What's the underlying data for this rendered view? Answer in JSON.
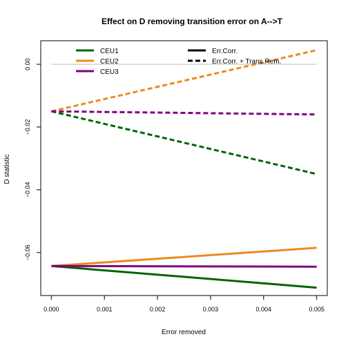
{
  "chart_data": {
    "type": "line",
    "title": "Effect on D removing transition error on A-->T",
    "xlabel": "Error removed",
    "ylabel": "D statistic",
    "xlim": [
      -0.0002,
      0.0052
    ],
    "ylim": [
      -0.0737,
      0.0075
    ],
    "x_ticks": [
      0.0,
      0.001,
      0.002,
      0.003,
      0.004,
      0.005
    ],
    "x_tick_labels": [
      "0.000",
      "0.001",
      "0.002",
      "0.003",
      "0.004",
      "0.005"
    ],
    "y_ticks": [
      0.0,
      -0.02,
      -0.04,
      -0.06
    ],
    "y_tick_labels": [
      "0.00",
      "−0.02",
      "−0.04",
      "−0.06"
    ],
    "reference_line": {
      "y": 0.0,
      "color": "#bdbdbd"
    },
    "colors": {
      "CEU1": "#006400",
      "CEU2": "#ee8a1c",
      "CEU3": "#800080"
    },
    "legend_position": "top",
    "legend_colors": [
      {
        "label": "CEU1",
        "color": "#006400"
      },
      {
        "label": "CEU2",
        "color": "#ee8a1c"
      },
      {
        "label": "CEU3",
        "color": "#800080"
      }
    ],
    "legend_styles": [
      {
        "label": "Err.Corr.",
        "dash": "solid"
      },
      {
        "label": "Err.Corr. + Trans.Rem.",
        "dash": "dashed"
      }
    ],
    "series": [
      {
        "name": "CEU1",
        "style": "Err.Corr.",
        "color": "#006400",
        "dash": "solid",
        "x": [
          0.0,
          0.005
        ],
        "y": [
          -0.0643,
          -0.0712
        ]
      },
      {
        "name": "CEU2",
        "style": "Err.Corr.",
        "color": "#ee8a1c",
        "dash": "solid",
        "x": [
          0.0,
          0.005
        ],
        "y": [
          -0.0643,
          -0.0585
        ]
      },
      {
        "name": "CEU3",
        "style": "Err.Corr.",
        "color": "#800080",
        "dash": "solid",
        "x": [
          0.0,
          0.005
        ],
        "y": [
          -0.0643,
          -0.0645
        ]
      },
      {
        "name": "CEU1",
        "style": "Err.Corr. + Trans.Rem.",
        "color": "#006400",
        "dash": "dashed",
        "x": [
          0.0,
          0.005
        ],
        "y": [
          -0.015,
          -0.035
        ]
      },
      {
        "name": "CEU2",
        "style": "Err.Corr. + Trans.Rem.",
        "color": "#ee8a1c",
        "dash": "dashed",
        "x": [
          0.0,
          0.005
        ],
        "y": [
          -0.015,
          0.0045
        ]
      },
      {
        "name": "CEU3",
        "style": "Err.Corr. + Trans.Rem.",
        "color": "#800080",
        "dash": "dashed",
        "x": [
          0.0,
          0.005
        ],
        "y": [
          -0.015,
          -0.016
        ]
      }
    ]
  }
}
